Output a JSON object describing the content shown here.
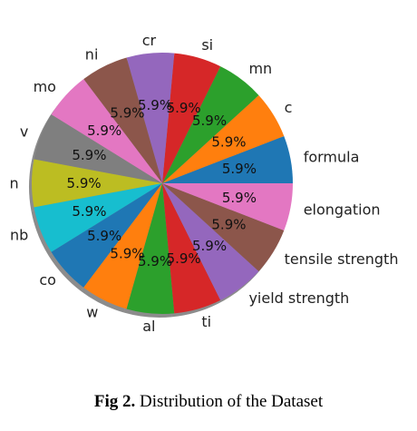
{
  "chart_data": {
    "type": "pie",
    "labels": [
      "formula",
      "c",
      "mn",
      "si",
      "cr",
      "ni",
      "mo",
      "v",
      "n",
      "nb",
      "co",
      "w",
      "al",
      "ti",
      "yield strength",
      "tensile strength",
      "elongation"
    ],
    "values": [
      5.9,
      5.9,
      5.9,
      5.9,
      5.9,
      5.9,
      5.9,
      5.9,
      5.9,
      5.9,
      5.9,
      5.9,
      5.9,
      5.9,
      5.9,
      5.9,
      5.9
    ],
    "pct_labels": [
      "5.9%",
      "5.9%",
      "5.9%",
      "5.9%",
      "5.9%",
      "5.9%",
      "5.9%",
      "5.9%",
      "5.9%",
      "5.9%",
      "5.9%",
      "5.9%",
      "5.9%",
      "5.9%",
      "5.9%",
      "5.9%",
      "5.9%"
    ],
    "colors": [
      "#1f77b4",
      "#ff7f0e",
      "#2ca02c",
      "#d62728",
      "#9467bd",
      "#8c564b",
      "#e377c2",
      "#7f7f7f",
      "#bcbd22",
      "#17becf",
      "#1f77b4",
      "#ff7f0e",
      "#2ca02c",
      "#d62728",
      "#9467bd",
      "#8c564b",
      "#e377c2"
    ],
    "start_angle_deg": 0,
    "direction": "counterclockwise",
    "shadow": true
  },
  "caption": {
    "prefix": "Fig 2.",
    "text": " Distribution of the Dataset"
  }
}
